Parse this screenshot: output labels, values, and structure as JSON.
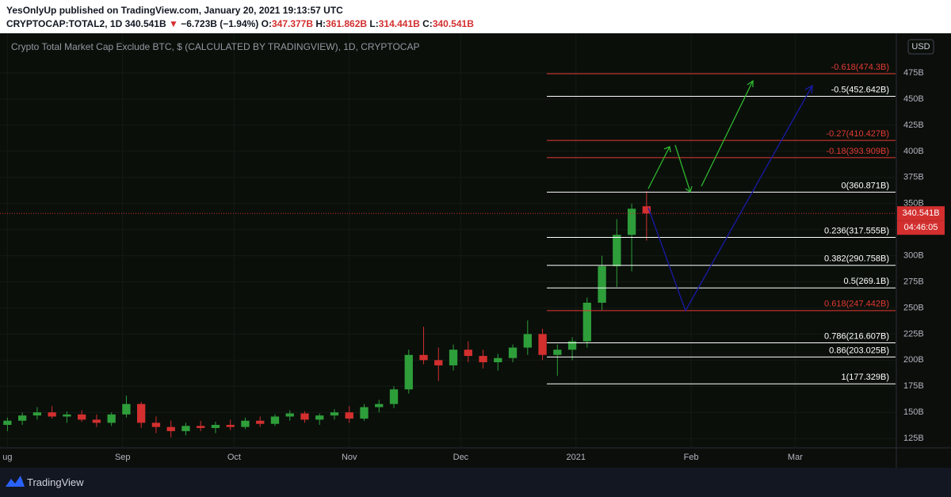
{
  "header": {
    "byline": "YesOnlyUp published on TradingView.com, January 20, 2021 19:13:57 UTC",
    "symbol": "CRYPTOCAP:TOTAL2, 1D",
    "last": "340.541B",
    "arrow": "▼",
    "change": "−6.723B (−1.94%)",
    "o_label": "O:",
    "o": "347.377B",
    "h_label": "H:",
    "h": "361.862B",
    "l_label": "L:",
    "l": "314.441B",
    "c_label": "C:",
    "c": "340.541B"
  },
  "footer": {
    "brand": "TradingView"
  },
  "chart_data": {
    "type": "candlestick",
    "title": "Crypto Total Market Cap Exclude BTC, $ (CALCULATED BY TRADINGVIEW), 1D, CRYPTOCAP",
    "currency": "USD",
    "x": [
      0,
      4,
      8,
      12,
      16,
      20,
      24,
      28,
      32,
      36,
      40,
      44,
      48,
      52,
      56,
      60,
      64,
      68,
      72,
      76,
      80,
      84,
      88,
      92,
      96,
      100,
      104,
      108,
      112,
      116,
      120,
      124,
      128,
      132,
      136,
      140,
      144,
      148,
      152,
      156,
      160,
      164,
      168,
      172
    ],
    "open": [
      138,
      142,
      147,
      150,
      146,
      148,
      143,
      140,
      148,
      158,
      140,
      136,
      132,
      137,
      135,
      138,
      136,
      142,
      139,
      146,
      149,
      143,
      147,
      150,
      144,
      155,
      158,
      172,
      205,
      200,
      195,
      210,
      204,
      198,
      202,
      212,
      225,
      205,
      210,
      218,
      255,
      290,
      320,
      347.377
    ],
    "high": [
      145,
      150,
      155,
      156,
      151,
      152,
      148,
      150,
      166,
      160,
      146,
      142,
      140,
      142,
      141,
      143,
      145,
      146,
      148,
      152,
      151,
      149,
      153,
      156,
      158,
      162,
      175,
      210,
      232,
      212,
      215,
      218,
      210,
      206,
      215,
      238,
      230,
      215,
      222,
      260,
      300,
      335,
      350,
      361.862
    ],
    "low": [
      132,
      138,
      143,
      144,
      140,
      141,
      136,
      137,
      145,
      135,
      130,
      126,
      128,
      132,
      130,
      133,
      134,
      136,
      137,
      142,
      140,
      138,
      143,
      140,
      142,
      150,
      154,
      168,
      196,
      180,
      190,
      198,
      192,
      190,
      198,
      205,
      200,
      185,
      200,
      212,
      248,
      270,
      285,
      314.441
    ],
    "close": [
      142,
      147,
      150,
      146,
      148,
      143,
      140,
      148,
      158,
      140,
      136,
      132,
      137,
      135,
      138,
      136,
      142,
      139,
      146,
      149,
      143,
      147,
      150,
      144,
      155,
      158,
      172,
      205,
      200,
      195,
      210,
      204,
      198,
      202,
      212,
      225,
      205,
      210,
      218,
      255,
      290,
      320,
      345,
      340.541
    ],
    "up_color": "#2e9e3a",
    "down_color": "#d32f2f",
    "xlim": [
      -2,
      239
    ],
    "ylim": [
      116,
      513
    ],
    "xticks": [
      {
        "value": 0,
        "label": "ug"
      },
      {
        "value": 31,
        "label": "Sep"
      },
      {
        "value": 61,
        "label": "Oct"
      },
      {
        "value": 92,
        "label": "Nov"
      },
      {
        "value": 122,
        "label": "Dec"
      },
      {
        "value": 153,
        "label": "2021"
      },
      {
        "value": 184,
        "label": "Feb"
      },
      {
        "value": 212,
        "label": "Mar"
      }
    ],
    "yticks": [
      {
        "value": 125,
        "label": "125B"
      },
      {
        "value": 150,
        "label": "150B"
      },
      {
        "value": 175,
        "label": "175B"
      },
      {
        "value": 200,
        "label": "200B"
      },
      {
        "value": 225,
        "label": "225B"
      },
      {
        "value": 250,
        "label": "250B"
      },
      {
        "value": 275,
        "label": "275B"
      },
      {
        "value": 300,
        "label": "300B"
      },
      {
        "value": 325,
        "label": "325B"
      },
      {
        "value": 350,
        "label": "350B"
      },
      {
        "value": 375,
        "label": "375B"
      },
      {
        "value": 400,
        "label": "400B"
      },
      {
        "value": 425,
        "label": "425B"
      },
      {
        "value": 450,
        "label": "450B"
      },
      {
        "value": 475,
        "label": "475B"
      }
    ],
    "grid": true,
    "last_price": {
      "value": 340.541,
      "label": "340.541B"
    },
    "countdown": "04:46:05",
    "fib_levels": [
      {
        "value": 474.3,
        "label": "-0.618(474.3B)",
        "color": "#e53935"
      },
      {
        "value": 452.642,
        "label": "-0.5(452.642B)",
        "color": "#ffffff"
      },
      {
        "value": 410.427,
        "label": "-0.27(410.427B)",
        "color": "#e53935"
      },
      {
        "value": 393.909,
        "label": "-0.18(393.909B)",
        "color": "#e53935"
      },
      {
        "value": 360.871,
        "label": "0(360.871B)",
        "color": "#ffffff"
      },
      {
        "value": 317.555,
        "label": "0.236(317.555B)",
        "color": "#ffffff"
      },
      {
        "value": 290.758,
        "label": "0.382(290.758B)",
        "color": "#ffffff"
      },
      {
        "value": 269.1,
        "label": "0.5(269.1B)",
        "color": "#ffffff"
      },
      {
        "value": 247.442,
        "label": "0.618(247.442B)",
        "color": "#e53935"
      },
      {
        "value": 216.607,
        "label": "0.786(216.607B)",
        "color": "#ffffff"
      },
      {
        "value": 203.025,
        "label": "0.86(203.025B)",
        "color": "#ffffff"
      },
      {
        "value": 177.329,
        "label": "1(177.329B)",
        "color": "#ffffff"
      }
    ]
  }
}
